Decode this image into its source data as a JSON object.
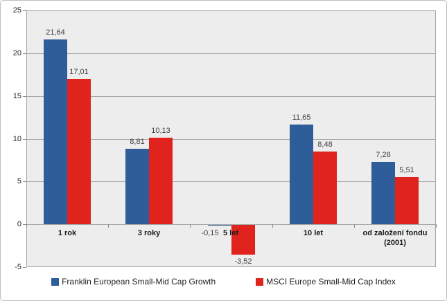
{
  "chart_data": {
    "type": "bar",
    "title": "",
    "xlabel": "",
    "ylabel": "",
    "categories": [
      "1 rok",
      "3 roky",
      "5 let",
      "10 let",
      "od založení fondu (2001)"
    ],
    "series": [
      {
        "name": "Franklin European Small-Mid Cap Growth",
        "color": "#2f5d9a",
        "values": [
          21.64,
          8.81,
          -0.15,
          11.65,
          7.28
        ],
        "value_labels": [
          "21,64",
          "8,81",
          "-0,15",
          "11,65",
          "7,28"
        ]
      },
      {
        "name": "MSCI Europe Small-Mid  Cap Index",
        "color": "#e0231d",
        "values": [
          17.01,
          10.13,
          -3.52,
          8.48,
          5.51
        ],
        "value_labels": [
          "17,01",
          "10,13",
          "-3,52",
          "8,48",
          "5,51"
        ]
      }
    ],
    "ylim": [
      -5,
      25
    ],
    "ytick_step": 5,
    "ytick_labels": [
      "25",
      "20",
      "15",
      "10",
      "5",
      "0",
      "-5"
    ],
    "grid": true,
    "legend_position": "bottom"
  },
  "colors": {
    "plot_bg": "#ededed",
    "gridline": "#a6a6a6",
    "axis": "#898989",
    "data_label": "#404040",
    "frame_border": "#bdbdbd"
  }
}
